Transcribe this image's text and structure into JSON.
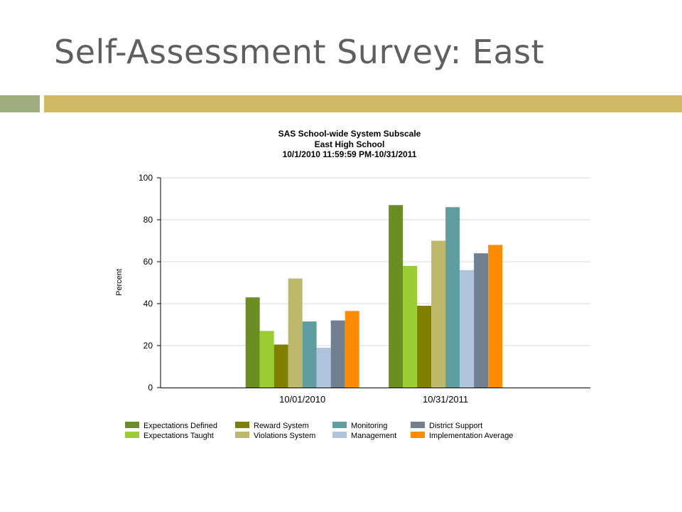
{
  "slide": {
    "title": "Self-Assessment Survey: East",
    "accent_left": "#9daf7f",
    "accent_right": "#cfb964"
  },
  "chart_data": {
    "type": "bar",
    "title": "SAS School-wide System Subscale",
    "subtitle": "East High School",
    "date_range": "10/1/2010 11:59:59 PM-10/31/2011",
    "xlabel": "",
    "ylabel": "Percent",
    "ylim": [
      0,
      100
    ],
    "yticks": [
      0,
      20,
      40,
      60,
      80,
      100
    ],
    "grid": true,
    "legend_position": "bottom",
    "categories": [
      "10/01/2010",
      "10/31/2011"
    ],
    "series": [
      {
        "name": "Expectations Defined",
        "color": "#6b8e23",
        "values": [
          43,
          87
        ]
      },
      {
        "name": "Expectations Taught",
        "color": "#9acd32",
        "values": [
          27,
          58
        ]
      },
      {
        "name": "Reward System",
        "color": "#808000",
        "values": [
          20.5,
          39
        ]
      },
      {
        "name": "Violations System",
        "color": "#bdb76b",
        "values": [
          52,
          70
        ]
      },
      {
        "name": "Monitoring",
        "color": "#5f9ea0",
        "values": [
          31.5,
          86
        ]
      },
      {
        "name": "Management",
        "color": "#b0c4de",
        "values": [
          19,
          56
        ]
      },
      {
        "name": "District Support",
        "color": "#708090",
        "values": [
          32,
          64
        ]
      },
      {
        "name": "Implementation Average",
        "color": "#ff8c00",
        "values": [
          36.5,
          68
        ]
      }
    ]
  }
}
